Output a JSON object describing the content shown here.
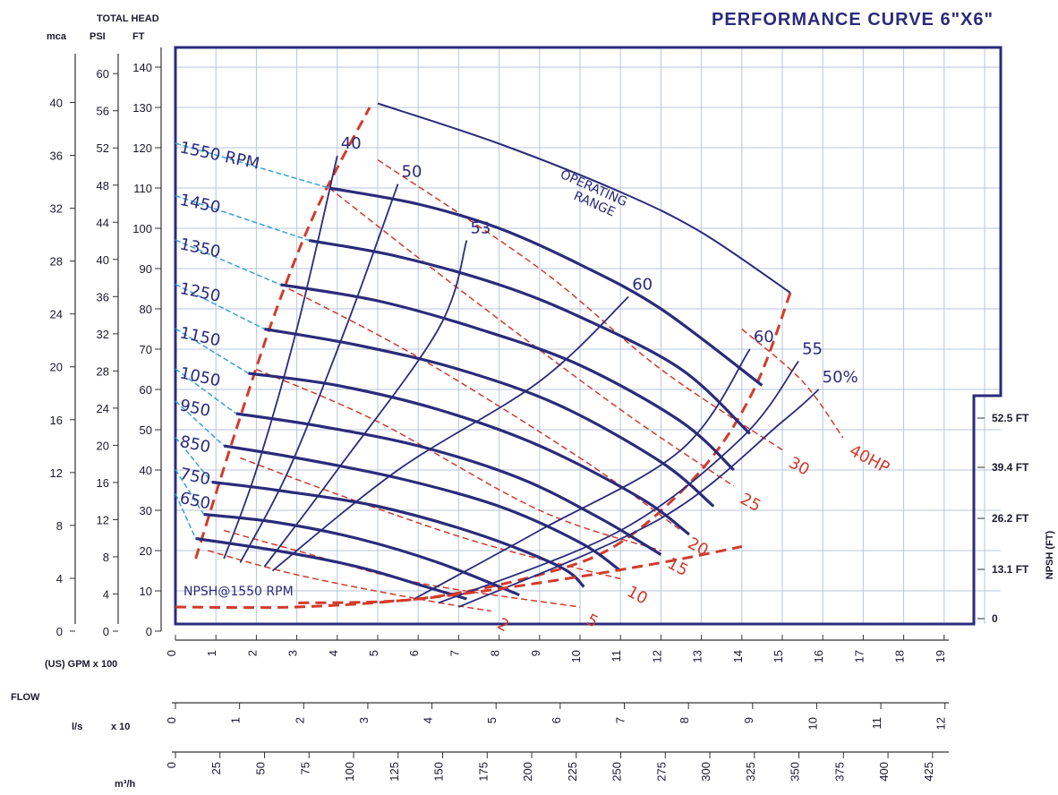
{
  "chart_data": {
    "type": "line",
    "title": "PERFORMANCE CURVE 6\"X6\"",
    "head_axis_title": "TOTAL HEAD",
    "head_units": [
      "mca",
      "PSI",
      "FT"
    ],
    "head_ft_ticks": [
      0,
      10,
      20,
      30,
      40,
      50,
      60,
      70,
      80,
      90,
      100,
      110,
      120,
      130,
      140
    ],
    "head_psi_ticks": [
      0,
      4,
      8,
      12,
      16,
      20,
      24,
      28,
      32,
      36,
      40,
      44,
      48,
      52,
      56,
      60
    ],
    "head_mca_ticks": [
      0,
      4,
      8,
      12,
      16,
      20,
      24,
      28,
      32,
      36,
      40
    ],
    "ylim": [
      0,
      140
    ],
    "xlim": [
      0,
      19
    ],
    "flow_label": "FLOW",
    "gpm_label": "(US) GPM  x 100",
    "gpm_ticks": [
      0,
      1,
      2,
      3,
      4,
      5,
      6,
      7,
      8,
      9,
      10,
      11,
      12,
      13,
      14,
      15,
      16,
      17,
      18,
      19
    ],
    "ls_label": "l/s",
    "ls_mult": "x 10",
    "ls_ticks": [
      0,
      1,
      2,
      3,
      4,
      5,
      6,
      7,
      8,
      9,
      10,
      11,
      12
    ],
    "m3h_label": "m³/h",
    "m3h_ticks": [
      0,
      25,
      50,
      75,
      100,
      125,
      150,
      175,
      200,
      225,
      250,
      275,
      300,
      325,
      350,
      375,
      400,
      425
    ],
    "npsh_axis_label": "NPSH (FT)",
    "npsh_ticks": [
      "0",
      "13.1 FT",
      "26.2 FT",
      "39.4 FT",
      "52.5 FT"
    ],
    "npsh_curve_label": "NPSH@1550 RPM",
    "operating_range_label": [
      "OPERATING",
      "RANGE"
    ],
    "series": [
      {
        "name": "1550 RPM",
        "label": "1550 RPM",
        "x": [
          3.8,
          6,
          8,
          10,
          12,
          14.5
        ],
        "y": [
          110,
          106,
          100,
          91,
          80,
          61
        ]
      },
      {
        "name": "1450",
        "label": "1450",
        "x": [
          3.3,
          5.5,
          8,
          10,
          12.5,
          14.2
        ],
        "y": [
          97,
          93,
          86,
          78,
          65,
          49
        ]
      },
      {
        "name": "1350",
        "label": "1350",
        "x": [
          2.6,
          5,
          7.5,
          10,
          12.5,
          13.8
        ],
        "y": [
          86,
          82,
          75,
          66,
          52,
          40
        ]
      },
      {
        "name": "1250",
        "label": "1250",
        "x": [
          2.2,
          4.5,
          7,
          9.5,
          12,
          13.3
        ],
        "y": [
          75,
          71,
          65,
          56,
          42,
          31
        ]
      },
      {
        "name": "1150",
        "label": "1150",
        "x": [
          1.8,
          4,
          6.5,
          9,
          11.5,
          12.7
        ],
        "y": [
          64,
          61,
          55,
          46,
          33,
          24
        ]
      },
      {
        "name": "1050",
        "label": "1050",
        "x": [
          1.5,
          3.5,
          6,
          8.5,
          10.5,
          12
        ],
        "y": [
          54,
          51,
          46,
          38,
          28,
          19
        ]
      },
      {
        "name": "950",
        "label": "950",
        "x": [
          1.2,
          3,
          5.5,
          8,
          10,
          11
        ],
        "y": [
          46,
          43,
          38,
          31,
          22,
          15
        ]
      },
      {
        "name": "850",
        "label": "850",
        "x": [
          0.9,
          2.5,
          5,
          7.5,
          9.5,
          10.1
        ],
        "y": [
          37,
          35,
          31,
          24,
          16,
          11
        ]
      },
      {
        "name": "750",
        "label": "750",
        "x": [
          0.7,
          2.5,
          4.5,
          6.5,
          8.5
        ],
        "y": [
          29,
          27,
          23,
          17,
          9
        ]
      },
      {
        "name": "650",
        "label": "650",
        "x": [
          0.5,
          2.5,
          4.5,
          6.2,
          7.2
        ],
        "y": [
          23,
          20,
          16,
          11,
          8
        ]
      }
    ],
    "efficiency_curves": [
      {
        "label": "40",
        "x": [
          1.2,
          2,
          3,
          4
        ],
        "y": [
          18,
          40,
          75,
          118
        ]
      },
      {
        "label": "50",
        "x": [
          1.6,
          2.8,
          4.2,
          5.5
        ],
        "y": [
          17,
          40,
          75,
          111
        ]
      },
      {
        "label": "53",
        "x": [
          2.2,
          4,
          6.5,
          7.2
        ],
        "y": [
          16,
          40,
          75,
          97
        ]
      },
      {
        "label": "60",
        "x": [
          2.4,
          5.5,
          9,
          11.2
        ],
        "y": [
          15,
          40,
          62,
          83
        ]
      },
      {
        "label": "60",
        "x": [
          5.9,
          9,
          12.5,
          14.2
        ],
        "y": [
          8,
          25,
          45,
          70
        ]
      },
      {
        "label": "55",
        "x": [
          6.5,
          11,
          14,
          15.4
        ],
        "y": [
          7,
          25,
          48,
          67
        ]
      },
      {
        "label": "50%",
        "x": [
          7,
          12,
          15,
          15.9
        ],
        "y": [
          6,
          28,
          52,
          60
        ]
      }
    ],
    "power_curves": [
      {
        "label": "40HP",
        "x": [
          14,
          15.5,
          16.5
        ],
        "y": [
          75,
          62,
          48
        ]
      },
      {
        "label": "30",
        "x": [
          5,
          9,
          12,
          15
        ],
        "y": [
          117,
          90,
          65,
          45
        ]
      },
      {
        "label": "25",
        "x": [
          3.8,
          7,
          11,
          13.8
        ],
        "y": [
          110,
          85,
          55,
          36
        ]
      },
      {
        "label": "20",
        "x": [
          2.8,
          6,
          10,
          12.5
        ],
        "y": [
          85,
          68,
          43,
          25
        ]
      },
      {
        "label": "15",
        "x": [
          2,
          5,
          9,
          12
        ],
        "y": [
          65,
          52,
          30,
          20
        ]
      },
      {
        "label": "10",
        "x": [
          1.6,
          4,
          7.5,
          11
        ],
        "y": [
          43,
          34,
          22,
          13
        ]
      },
      {
        "label": "5",
        "x": [
          1.2,
          3,
          6,
          10
        ],
        "y": [
          25,
          20,
          12,
          6
        ]
      },
      {
        "label": "2",
        "x": [
          0.8,
          3,
          6,
          7.8
        ],
        "y": [
          20,
          14,
          8,
          5
        ]
      }
    ],
    "npsh_curve": {
      "x": [
        0,
        3,
        6,
        9,
        12,
        14
      ],
      "y": [
        6,
        6,
        8,
        12,
        17,
        21
      ]
    },
    "operating_range_boundary_left": {
      "x": [
        0.5,
        1.5,
        2.5,
        3.5,
        4.8
      ],
      "y": [
        18,
        50,
        80,
        105,
        130
      ]
    },
    "operating_range_boundary_right": {
      "x": [
        15.2,
        14.3,
        13,
        11,
        9,
        6,
        3
      ],
      "y": [
        84,
        60,
        40,
        22,
        14,
        8,
        7
      ]
    },
    "operating_range_arc": {
      "x": [
        5,
        8,
        11,
        13,
        15.2
      ],
      "y": [
        131,
        121,
        109,
        99,
        84
      ]
    }
  },
  "colors": {
    "frame": "#2b2b7a",
    "curve": "#2b2b7a",
    "power": "#d23b2a",
    "rpm_lead": "#3aa0d8",
    "grid": "#b8c6dc"
  }
}
